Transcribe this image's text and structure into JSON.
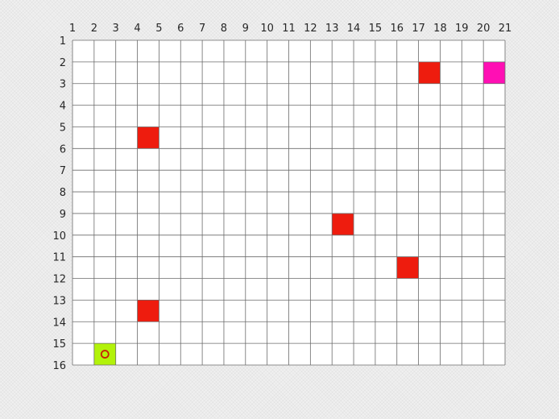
{
  "grid": {
    "columns": 21,
    "rows": 16,
    "x_labels": [
      "1",
      "2",
      "3",
      "4",
      "5",
      "6",
      "7",
      "8",
      "9",
      "10",
      "11",
      "12",
      "13",
      "14",
      "15",
      "16",
      "17",
      "18",
      "19",
      "20",
      "21"
    ],
    "y_labels": [
      "1",
      "2",
      "3",
      "4",
      "5",
      "6",
      "7",
      "8",
      "9",
      "10",
      "11",
      "12",
      "13",
      "14",
      "15",
      "16"
    ],
    "background_color": "#ffffff",
    "line_color": "#6b6b6b",
    "x_axis_location": "top"
  },
  "cells": [
    {
      "type": "obstacle",
      "x": 17,
      "y": 2,
      "color": "#ee1c0e"
    },
    {
      "type": "goal",
      "x": 20,
      "y": 2,
      "color": "#ff0fb4"
    },
    {
      "type": "obstacle",
      "x": 4,
      "y": 5,
      "color": "#ee1c0e"
    },
    {
      "type": "obstacle",
      "x": 13,
      "y": 9,
      "color": "#ee1c0e"
    },
    {
      "type": "obstacle",
      "x": 16,
      "y": 11,
      "color": "#ee1c0e"
    },
    {
      "type": "obstacle",
      "x": 4,
      "y": 13,
      "color": "#ee1c0e"
    },
    {
      "type": "start",
      "x": 2,
      "y": 15,
      "color": "#b2f20a"
    }
  ],
  "agent": {
    "x": 2,
    "y": 15,
    "marker": "circle",
    "color": "#c81e0a"
  }
}
